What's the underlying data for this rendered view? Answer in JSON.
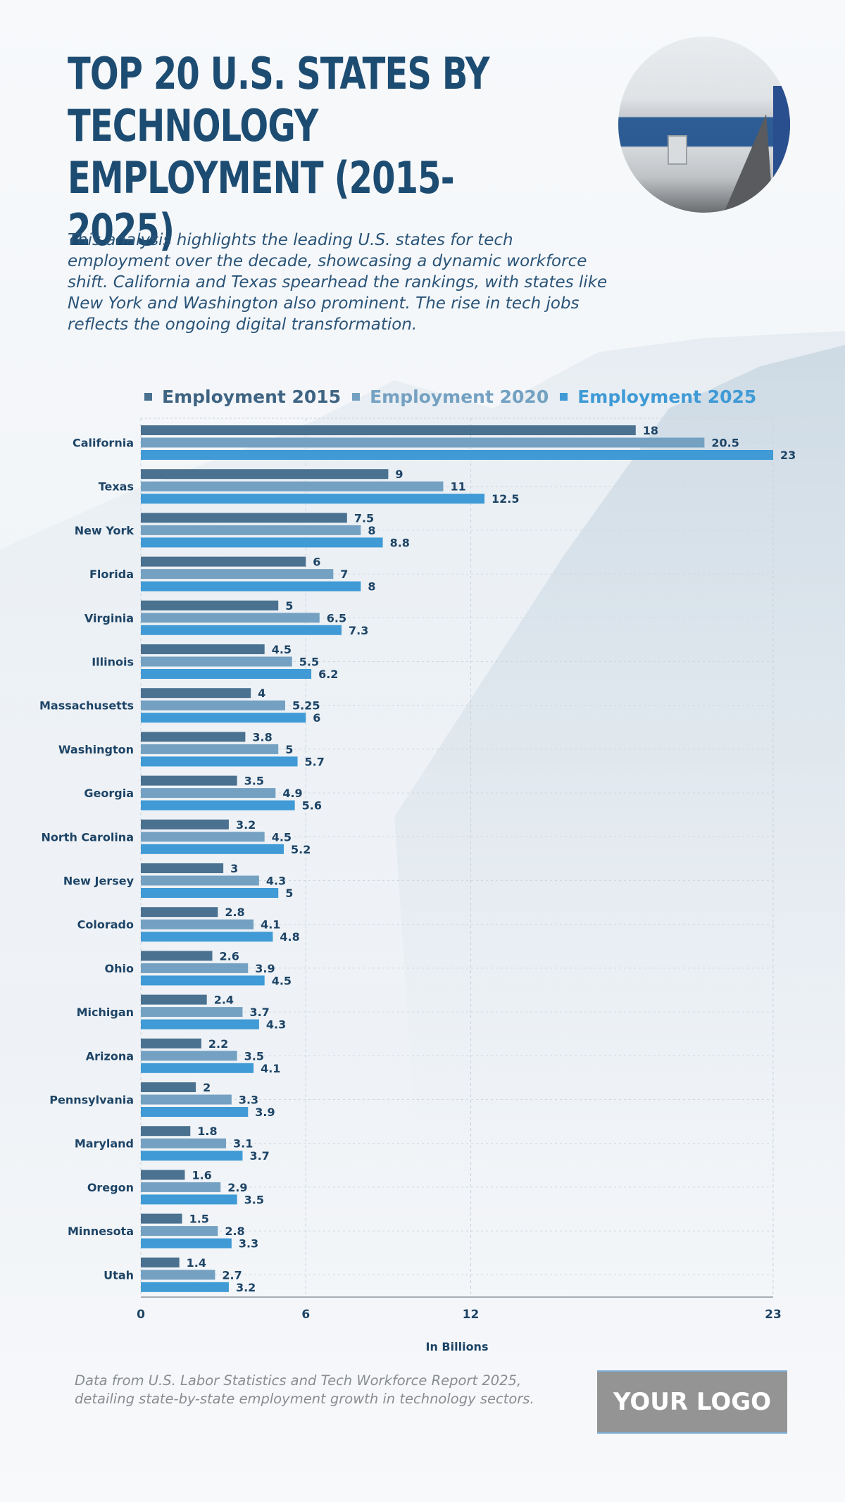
{
  "header": {
    "title": "TOP 20 U.S. STATES BY TECHNOLOGY EMPLOYMENT (2015-2025)",
    "description": "This analysis highlights the leading U.S. states for tech employment over the decade, showcasing a dynamic workforce shift. California and Texas spearhead the rankings, with states like New York and Washington also prominent. The rise in tech jobs reflects the ongoing digital transformation.",
    "photo_icon": "office-photo"
  },
  "colors": {
    "series_2015": "#4a7190",
    "series_2020": "#74a1c2",
    "series_2025": "#3f9ad5",
    "text": "#1d4466"
  },
  "chart_data": {
    "type": "bar",
    "orientation": "horizontal",
    "title": "TOP 20 U.S. STATES BY TECHNOLOGY EMPLOYMENT (2015-2025)",
    "xlabel": "In Billions",
    "ylabel": "",
    "xlim": [
      0,
      23
    ],
    "xticks": [
      0,
      6,
      12,
      23
    ],
    "grid": true,
    "legend_position": "top",
    "categories": [
      "California",
      "Texas",
      "New York",
      "Florida",
      "Virginia",
      "Illinois",
      "Massachusetts",
      "Washington",
      "Georgia",
      "North Carolina",
      "New Jersey",
      "Colorado",
      "Ohio",
      "Michigan",
      "Arizona",
      "Pennsylvania",
      "Maryland",
      "Oregon",
      "Minnesota",
      "Utah"
    ],
    "series": [
      {
        "name": "Employment 2015",
        "values": [
          18,
          9,
          7.5,
          6,
          5,
          4.5,
          4,
          3.8,
          3.5,
          3.2,
          3,
          2.8,
          2.6,
          2.4,
          2.2,
          2,
          1.8,
          1.6,
          1.5,
          1.4
        ]
      },
      {
        "name": "Employment 2020",
        "values": [
          20.5,
          11,
          8,
          7,
          6.5,
          5.5,
          5.25,
          5,
          4.9,
          4.5,
          4.3,
          4.1,
          3.9,
          3.7,
          3.5,
          3.3,
          3.1,
          2.9,
          2.8,
          2.7
        ]
      },
      {
        "name": "Employment 2025",
        "values": [
          23,
          12.5,
          8.8,
          8,
          7.3,
          6.2,
          6,
          5.7,
          5.6,
          5.2,
          5,
          4.8,
          4.5,
          4.3,
          4.1,
          3.9,
          3.7,
          3.5,
          3.3,
          3.2
        ]
      }
    ]
  },
  "footer": {
    "source": "Data from U.S. Labor Statistics and Tech Workforce Report 2025, detailing state-by-state employment growth in technology sectors.",
    "logo": "YOUR LOGO"
  }
}
